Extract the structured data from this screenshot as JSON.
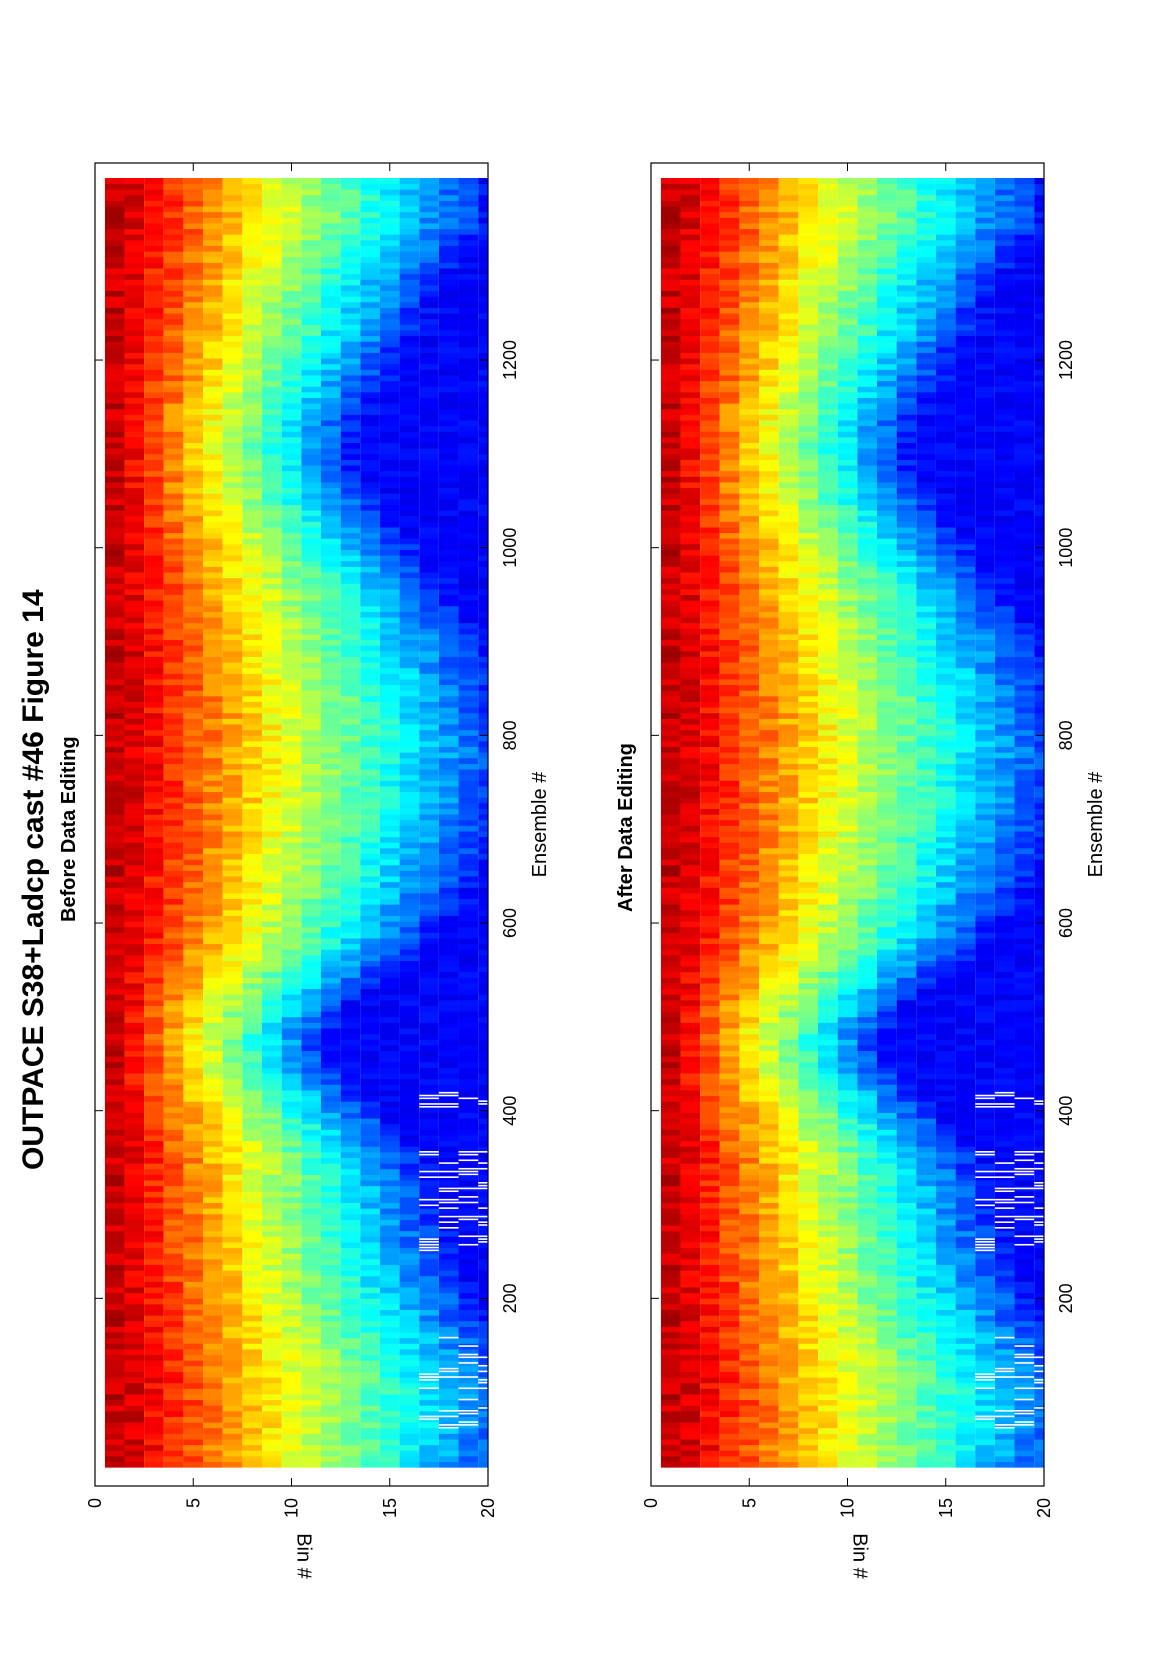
{
  "figure": {
    "title": "OUTPACE S38+Ladcp cast #46  Figure 14"
  },
  "chart_data": [
    {
      "type": "heatmap",
      "title": "Before Data Editing",
      "xlabel": "Ensemble #",
      "ylabel": "Bin #",
      "xlim": [
        0,
        1410
      ],
      "ylim": [
        0,
        20
      ],
      "xticks": [
        200,
        400,
        600,
        800,
        1000,
        1200
      ],
      "yticks": [
        0,
        5,
        10,
        15,
        20
      ],
      "colormap": "jet",
      "grid": false,
      "edited": false
    },
    {
      "type": "heatmap",
      "title": "After Data Editing",
      "xlabel": "Ensemble #",
      "ylabel": "Bin #",
      "xlim": [
        0,
        1410
      ],
      "ylim": [
        0,
        20
      ],
      "xticks": [
        200,
        400,
        600,
        800,
        1000,
        1200
      ],
      "yticks": [
        0,
        5,
        10,
        15,
        20
      ],
      "colormap": "jet",
      "grid": false,
      "edited": true
    }
  ]
}
